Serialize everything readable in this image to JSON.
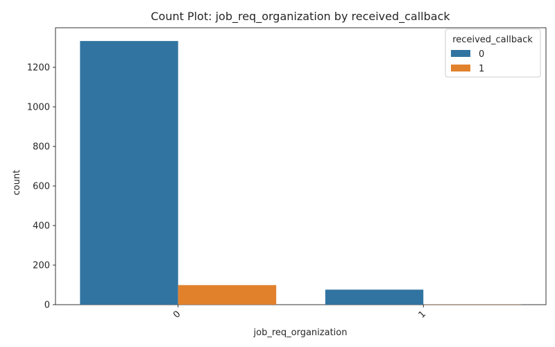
{
  "chart_data": {
    "type": "bar",
    "title": "Count Plot: job_req_organization by received_callback",
    "xlabel": "job_req_organization",
    "ylabel": "count",
    "categories": [
      "0",
      "1"
    ],
    "series": [
      {
        "name": "0",
        "values": [
          1333,
          76
        ],
        "color": "#3274a1"
      },
      {
        "name": "1",
        "values": [
          99,
          1
        ],
        "color": "#e1812c"
      }
    ],
    "ylim": [
      0,
      1400
    ],
    "yticks": [
      0,
      200,
      400,
      600,
      800,
      1000,
      1200
    ],
    "legend": {
      "title": "received_callback",
      "position": "top-right"
    },
    "grid": false
  }
}
